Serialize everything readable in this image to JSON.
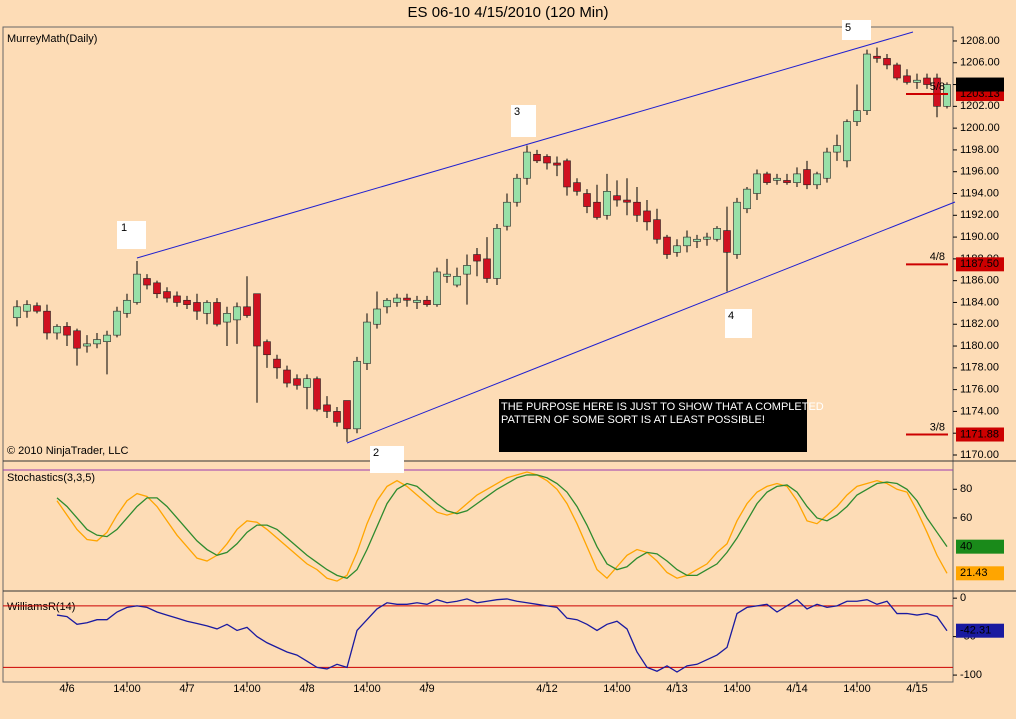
{
  "chart_data": [
    {
      "type": "candlestick",
      "title": "ES 06-10  4/15/2010 (120 Min)",
      "subtitle": "MurreyMath(Daily)",
      "footer": "© 2010 NinjaTrader, LLC",
      "annotation": [
        "THE PURPOSE HERE IS JUST TO SHOW THAT A COMPLETED",
        "PATTERN OF SOME SORT IS AT LEAST POSSIBLE!"
      ],
      "wave_labels": [
        "1",
        "2",
        "3",
        "4",
        "5"
      ],
      "categories": [
        null,
        null,
        null,
        null,
        null,
        "4/6",
        null,
        null,
        null,
        null,
        null,
        "14:00",
        null,
        null,
        null,
        null,
        null,
        "4/7",
        null,
        null,
        null,
        null,
        null,
        "14:00",
        null,
        null,
        null,
        null,
        null,
        "4/8",
        null,
        null,
        null,
        null,
        null,
        "14:00",
        null,
        null,
        null,
        null,
        null,
        "4/9",
        null,
        null,
        null,
        null,
        null,
        null,
        null,
        null,
        null,
        null,
        null,
        "4/12",
        null,
        null,
        null,
        null,
        null,
        null,
        "14:00",
        null,
        null,
        null,
        null,
        null,
        "4/13",
        null,
        null,
        null,
        null,
        null,
        "14:00",
        null,
        null,
        null,
        null,
        null,
        "4/14",
        null,
        null,
        null,
        null,
        null,
        "14:00",
        null,
        null,
        null,
        null,
        null,
        "4/15",
        null,
        null,
        null
      ],
      "open": [
        1182.6,
        1183.2,
        1183.7,
        1183.2,
        1181.2,
        1181.8,
        1181.4,
        1180,
        1180.2,
        1180.4,
        1181,
        1183,
        1184,
        1186.2,
        1185.8,
        1185,
        1184.6,
        1184.2,
        1184,
        1183,
        1184,
        1182.2,
        1182.4,
        1183.6,
        1184.8,
        1180.4,
        1178.8,
        1177.8,
        1177,
        1176.2,
        1177,
        1174.6,
        1174,
        1175,
        1172.4,
        1178.4,
        1182,
        1183.6,
        1184,
        1184.4,
        1184,
        1184.2,
        1183.8,
        1186.4,
        1185.6,
        1186.6,
        1188.4,
        1188,
        1186.2,
        1191,
        1193.2,
        1195.4,
        1197.6,
        1197.4,
        1196.8,
        1197,
        1195,
        1194,
        1193.2,
        1192,
        1193.8,
        1193.4,
        1193.2,
        1192.4,
        1191.6,
        1190,
        1188.6,
        1189.2,
        1189.6,
        1189.8,
        1189.8,
        1190.6,
        1188.4,
        1192.6,
        1194,
        1195.8,
        1195.2,
        1195.2,
        1195,
        1196.2,
        1194.8,
        1195.4,
        1197.8,
        1197,
        1200.6,
        1201.6,
        1206.6,
        1206.4,
        1205.8,
        1204.8,
        1204.2,
        1204.6,
        1204.6,
        1202
      ],
      "high": [
        1184.2,
        1184.2,
        1184,
        1183.8,
        1182,
        1182.2,
        1181.6,
        1181,
        1181.2,
        1181.4,
        1183.6,
        1184.8,
        1187.8,
        1186.6,
        1186,
        1185.4,
        1185,
        1184.6,
        1184.8,
        1184.2,
        1184.4,
        1183.6,
        1184,
        1186.4,
        1184.8,
        1180.6,
        1179.2,
        1178.2,
        1177.4,
        1177.4,
        1177.2,
        1175.4,
        1174.4,
        1175,
        1179,
        1183,
        1185,
        1184.4,
        1184.8,
        1184.8,
        1184.6,
        1184.6,
        1187.2,
        1188,
        1187.2,
        1188.4,
        1189,
        1190,
        1191.2,
        1194,
        1195.8,
        1198.4,
        1198,
        1197.6,
        1197.4,
        1197.2,
        1195.4,
        1194.4,
        1194.8,
        1195.8,
        1195.2,
        1195.4,
        1194.6,
        1193.4,
        1192.6,
        1190.2,
        1189.8,
        1190.6,
        1190.2,
        1190.4,
        1191,
        1192.8,
        1193.6,
        1194.6,
        1196.2,
        1196,
        1195.8,
        1195.8,
        1196.4,
        1197,
        1196,
        1198.2,
        1199.4,
        1200.8,
        1204,
        1207.2,
        1207.4,
        1206.8,
        1206,
        1205.4,
        1205,
        1205,
        1205,
        1204.2
      ],
      "low": [
        1181.8,
        1182.6,
        1183,
        1180.6,
        1180.6,
        1180,
        1178.2,
        1179.4,
        1179.8,
        1177.4,
        1180.8,
        1182.6,
        1183.8,
        1185.2,
        1184.4,
        1184,
        1183.6,
        1183.4,
        1182.4,
        1182,
        1181.8,
        1180,
        1180.2,
        1182.6,
        1174.8,
        1178,
        1177,
        1176.2,
        1176,
        1174.2,
        1174,
        1173.4,
        1172.6,
        1171.2,
        1172,
        1177.8,
        1181.6,
        1183,
        1183.6,
        1183.6,
        1183.4,
        1183.6,
        1183.6,
        1185.8,
        1185.4,
        1183.8,
        1186.4,
        1185.8,
        1185.6,
        1190.6,
        1192.8,
        1194.8,
        1196.8,
        1196.2,
        1195.6,
        1193.8,
        1193.8,
        1192.2,
        1191.6,
        1191.6,
        1192.8,
        1192,
        1191.4,
        1190.6,
        1189.4,
        1188,
        1188.2,
        1188.6,
        1189,
        1189.2,
        1189.6,
        1185,
        1188,
        1192.2,
        1193.4,
        1194.8,
        1194.8,
        1194.8,
        1194.6,
        1194.4,
        1194.4,
        1195,
        1197,
        1196.4,
        1200.2,
        1201.2,
        1206,
        1205.4,
        1204.4,
        1204,
        1203.6,
        1203.6,
        1201,
        1201.8
      ],
      "close": [
        1183.6,
        1183.8,
        1183.2,
        1181.2,
        1181.8,
        1181,
        1179.8,
        1180.2,
        1180.6,
        1181,
        1183.2,
        1184.2,
        1186.6,
        1185.6,
        1184.8,
        1184.4,
        1184,
        1183.8,
        1183.2,
        1184,
        1182,
        1183,
        1183.6,
        1182.8,
        1180,
        1179.2,
        1178,
        1176.6,
        1176.4,
        1177,
        1174.2,
        1174,
        1173,
        1172.4,
        1178.6,
        1182.2,
        1183.4,
        1184.2,
        1184.4,
        1184.2,
        1184.2,
        1183.8,
        1186.8,
        1186.6,
        1186.4,
        1187.4,
        1187.8,
        1186.2,
        1190.8,
        1193.2,
        1195.4,
        1197.8,
        1197,
        1196.8,
        1196.6,
        1194.6,
        1194.2,
        1192.8,
        1191.8,
        1194.2,
        1193.4,
        1193.2,
        1192,
        1191.4,
        1189.8,
        1188.4,
        1189.2,
        1190,
        1189.8,
        1190,
        1190.8,
        1188.6,
        1193.2,
        1194.4,
        1195.8,
        1195,
        1195.4,
        1195,
        1195.8,
        1194.8,
        1195.8,
        1197.8,
        1198.4,
        1200.6,
        1201.6,
        1206.8,
        1206.4,
        1205.8,
        1204.6,
        1204.2,
        1204.4,
        1204,
        1202,
        1204
      ],
      "up_color": "#98e0a8",
      "down_color": "#d01020",
      "last_label": {
        "value": 1204,
        "label": "1204.00"
      },
      "levels": [
        1203.13,
        1187.5,
        1171.88
      ],
      "level_names": [
        "5/8",
        "4/8",
        "3/8"
      ],
      "level_value_labels": [
        "1203.13",
        "1187.50",
        "1171.88"
      ],
      "level_color": "#cc0000",
      "ylim": [
        1169.54,
        1209.19
      ],
      "yticks": [
        {
          "value": 1170,
          "label": "1170.00"
        },
        {
          "value": 1172,
          "label": "1172.00"
        },
        {
          "value": 1174,
          "label": "1174.00"
        },
        {
          "value": 1176,
          "label": "1176.00"
        },
        {
          "value": 1178,
          "label": "1178.00"
        },
        {
          "value": 1180,
          "label": "1180.00"
        },
        {
          "value": 1182,
          "label": "1182.00"
        },
        {
          "value": 1184,
          "label": "1184.00"
        },
        {
          "value": 1186,
          "label": "1186.00"
        },
        {
          "value": 1188,
          "label": "1188.00"
        },
        {
          "value": 1190,
          "label": "1190.00"
        },
        {
          "value": 1192,
          "label": "1192.00"
        },
        {
          "value": 1194,
          "label": "1194.00"
        },
        {
          "value": 1196,
          "label": "1196.00"
        },
        {
          "value": 1198,
          "label": "1198.00"
        },
        {
          "value": 1200,
          "label": "1200.00"
        },
        {
          "value": 1202,
          "label": "1202.00"
        },
        {
          "value": 1204,
          "label": "1204.00"
        },
        {
          "value": 1206,
          "label": "1206.00"
        },
        {
          "value": 1208,
          "label": "1208.00"
        }
      ]
    },
    {
      "type": "line",
      "title": "Stochastics(3,3,5)",
      "series": [
        {
          "color": "#ffa500",
          "values": [
            null,
            null,
            null,
            null,
            72,
            62,
            52,
            45,
            44,
            50,
            62,
            72,
            77,
            75,
            68,
            58,
            48,
            40,
            32,
            30,
            34,
            42,
            52,
            58,
            57,
            52,
            46,
            40,
            34,
            28,
            24,
            18,
            16,
            20,
            36,
            56,
            72,
            82,
            86,
            82,
            76,
            70,
            64,
            62,
            64,
            70,
            76,
            80,
            84,
            88,
            90,
            92,
            90,
            86,
            80,
            70,
            56,
            40,
            24,
            18,
            26,
            34,
            38,
            36,
            30,
            22,
            18,
            20,
            24,
            28,
            36,
            42,
            58,
            70,
            78,
            82,
            84,
            82,
            72,
            58,
            56,
            62,
            68,
            76,
            82,
            84,
            86,
            84,
            80,
            78,
            65,
            50,
            34,
            21.43
          ]
        },
        {
          "color": "#2e8b2e",
          "values": [
            null,
            null,
            null,
            null,
            74,
            68,
            60,
            52,
            48,
            47,
            52,
            60,
            68,
            74,
            74,
            68,
            60,
            52,
            44,
            38,
            34,
            36,
            42,
            50,
            55,
            55,
            52,
            46,
            40,
            34,
            29,
            24,
            20,
            18,
            24,
            38,
            54,
            70,
            80,
            84,
            82,
            76,
            70,
            65,
            63,
            65,
            70,
            75,
            80,
            84,
            88,
            90,
            90,
            88,
            84,
            78,
            68,
            55,
            40,
            28,
            24,
            26,
            32,
            36,
            35,
            30,
            24,
            20,
            20,
            24,
            28,
            36,
            46,
            58,
            70,
            78,
            82,
            83,
            78,
            68,
            60,
            58,
            62,
            68,
            76,
            80,
            84,
            85,
            84,
            80,
            72,
            60,
            50,
            40
          ]
        }
      ],
      "ylim": [
        9.8,
        99
      ],
      "yticks": [
        80,
        60
      ]
    },
    {
      "type": "line",
      "title": "WilliamsR(14)",
      "series": [
        {
          "color": "#1a1aa0",
          "values": [
            null,
            null,
            null,
            null,
            -22,
            -24,
            -34,
            -32,
            -28,
            -28,
            -18,
            -12,
            -10,
            -12,
            -18,
            -22,
            -26,
            -30,
            -33,
            -36,
            -40,
            -34,
            -42,
            -38,
            -50,
            -58,
            -64,
            -70,
            -74,
            -82,
            -90,
            -92,
            -86,
            -90,
            -42,
            -28,
            -14,
            -6,
            -8,
            -8,
            -6,
            -8,
            -2,
            -6,
            -4,
            -1,
            -6,
            -4,
            -2,
            -1,
            -4,
            -6,
            -8,
            -10,
            -12,
            -26,
            -28,
            -34,
            -42,
            -34,
            -30,
            -40,
            -70,
            -90,
            -95,
            -88,
            -96,
            -88,
            -86,
            -80,
            -74,
            -64,
            -20,
            -12,
            -10,
            -8,
            -18,
            -10,
            -2,
            -14,
            -8,
            -12,
            -10,
            -4,
            -4,
            -2,
            -8,
            -4,
            -20,
            -20,
            -22,
            -20,
            -24,
            -42.31
          ]
        }
      ],
      "levels": [
        -10,
        -90
      ],
      "level_color": "#cc0000",
      "ylim": [
        -109,
        8
      ],
      "yticks": [
        0,
        -50,
        -100
      ]
    }
  ]
}
